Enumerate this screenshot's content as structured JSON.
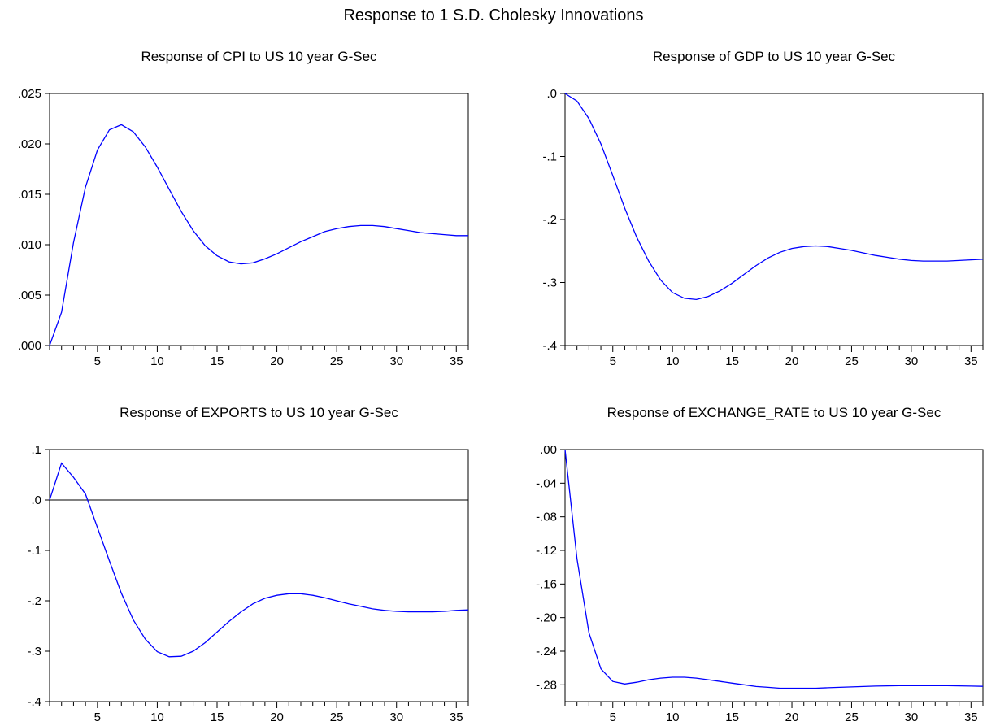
{
  "figure": {
    "title": "Response to 1 S.D. Cholesky Innovations"
  },
  "chart_data": [
    {
      "type": "line",
      "title": "Response of CPI to US 10 year G-Sec",
      "xlabel": "",
      "ylabel": "",
      "xlim": [
        1,
        36
      ],
      "ylim": [
        0.0,
        0.025
      ],
      "x_ticks": [
        5,
        10,
        15,
        20,
        25,
        30,
        35
      ],
      "y_ticks": [
        0.0,
        0.005,
        0.01,
        0.015,
        0.02,
        0.025
      ],
      "y_tick_labels": [
        ".000",
        ".005",
        ".010",
        ".015",
        ".020",
        ".025"
      ],
      "zero_line": false,
      "line_color": "#0000ff",
      "x": [
        1,
        2,
        3,
        4,
        5,
        6,
        7,
        8,
        9,
        10,
        11,
        12,
        13,
        14,
        15,
        16,
        17,
        18,
        19,
        20,
        21,
        22,
        23,
        24,
        25,
        26,
        27,
        28,
        29,
        30,
        31,
        32,
        33,
        34,
        35,
        36
      ],
      "values": [
        0.0,
        0.0033,
        0.0102,
        0.0157,
        0.0194,
        0.0214,
        0.0219,
        0.0212,
        0.0197,
        0.0177,
        0.0155,
        0.0133,
        0.0114,
        0.0099,
        0.0089,
        0.0083,
        0.0081,
        0.0082,
        0.0086,
        0.0091,
        0.0097,
        0.0103,
        0.0108,
        0.0113,
        0.0116,
        0.0118,
        0.0119,
        0.0119,
        0.0118,
        0.0116,
        0.0114,
        0.0112,
        0.0111,
        0.011,
        0.0109,
        0.0109
      ]
    },
    {
      "type": "line",
      "title": "Response of GDP to US 10 year G-Sec",
      "xlabel": "",
      "ylabel": "",
      "xlim": [
        1,
        36
      ],
      "ylim": [
        -0.4,
        0.0
      ],
      "x_ticks": [
        5,
        10,
        15,
        20,
        25,
        30,
        35
      ],
      "y_ticks": [
        -0.4,
        -0.3,
        -0.2,
        -0.1,
        0.0
      ],
      "y_tick_labels": [
        "-.4",
        "-.3",
        "-.2",
        "-.1",
        ".0"
      ],
      "zero_line": false,
      "line_color": "#0000ff",
      "x": [
        1,
        2,
        3,
        4,
        5,
        6,
        7,
        8,
        9,
        10,
        11,
        12,
        13,
        14,
        15,
        16,
        17,
        18,
        19,
        20,
        21,
        22,
        23,
        24,
        25,
        26,
        27,
        28,
        29,
        30,
        31,
        32,
        33,
        34,
        35,
        36
      ],
      "values": [
        0.0,
        -0.012,
        -0.04,
        -0.08,
        -0.13,
        -0.182,
        -0.228,
        -0.266,
        -0.296,
        -0.316,
        -0.325,
        -0.327,
        -0.322,
        -0.313,
        -0.301,
        -0.287,
        -0.273,
        -0.261,
        -0.252,
        -0.246,
        -0.243,
        -0.242,
        -0.243,
        -0.246,
        -0.249,
        -0.253,
        -0.257,
        -0.26,
        -0.263,
        -0.265,
        -0.266,
        -0.266,
        -0.266,
        -0.265,
        -0.264,
        -0.263
      ]
    },
    {
      "type": "line",
      "title": "Response of EXPORTS to US 10 year G-Sec",
      "xlabel": "",
      "ylabel": "",
      "xlim": [
        1,
        36
      ],
      "ylim": [
        -0.4,
        0.1
      ],
      "x_ticks": [
        5,
        10,
        15,
        20,
        25,
        30,
        35
      ],
      "y_ticks": [
        -0.4,
        -0.3,
        -0.2,
        -0.1,
        0.0,
        0.1
      ],
      "y_tick_labels": [
        "-.4",
        "-.3",
        "-.2",
        "-.1",
        ".0",
        ".1"
      ],
      "zero_line": true,
      "line_color": "#0000ff",
      "x": [
        1,
        2,
        3,
        4,
        5,
        6,
        7,
        8,
        9,
        10,
        11,
        12,
        13,
        14,
        15,
        16,
        17,
        18,
        19,
        20,
        21,
        22,
        23,
        24,
        25,
        26,
        27,
        28,
        29,
        30,
        31,
        32,
        33,
        34,
        35,
        36
      ],
      "values": [
        0.0,
        0.073,
        0.045,
        0.012,
        -0.055,
        -0.121,
        -0.185,
        -0.238,
        -0.276,
        -0.301,
        -0.311,
        -0.31,
        -0.3,
        -0.283,
        -0.262,
        -0.241,
        -0.222,
        -0.206,
        -0.195,
        -0.189,
        -0.186,
        -0.186,
        -0.189,
        -0.194,
        -0.2,
        -0.206,
        -0.211,
        -0.216,
        -0.219,
        -0.221,
        -0.222,
        -0.222,
        -0.222,
        -0.221,
        -0.219,
        -0.218
      ]
    },
    {
      "type": "line",
      "title": "Response of EXCHANGE_RATE to US 10 year G-Sec",
      "xlabel": "",
      "ylabel": "",
      "xlim": [
        1,
        36
      ],
      "ylim": [
        -0.3,
        0.0
      ],
      "x_ticks": [
        5,
        10,
        15,
        20,
        25,
        30,
        35
      ],
      "y_ticks": [
        -0.28,
        -0.24,
        -0.2,
        -0.16,
        -0.12,
        -0.08,
        -0.04,
        0.0
      ],
      "y_tick_labels": [
        "-.28",
        "-.24",
        "-.20",
        "-.16",
        "-.12",
        "-.08",
        "-.04",
        ".00"
      ],
      "zero_line": false,
      "line_color": "#0000ff",
      "x": [
        1,
        2,
        3,
        4,
        5,
        6,
        7,
        8,
        9,
        10,
        11,
        12,
        13,
        14,
        15,
        16,
        17,
        18,
        19,
        20,
        21,
        22,
        23,
        24,
        25,
        26,
        27,
        28,
        29,
        30,
        31,
        32,
        33,
        34,
        35,
        36
      ],
      "values": [
        0.0,
        -0.13,
        -0.218,
        -0.261,
        -0.276,
        -0.279,
        -0.277,
        -0.274,
        -0.272,
        -0.271,
        -0.271,
        -0.272,
        -0.274,
        -0.276,
        -0.278,
        -0.28,
        -0.282,
        -0.283,
        -0.284,
        -0.284,
        -0.284,
        -0.284,
        -0.2835,
        -0.283,
        -0.2825,
        -0.282,
        -0.2815,
        -0.2812,
        -0.281,
        -0.281,
        -0.281,
        -0.281,
        -0.281,
        -0.2812,
        -0.2815,
        -0.2818
      ]
    }
  ]
}
